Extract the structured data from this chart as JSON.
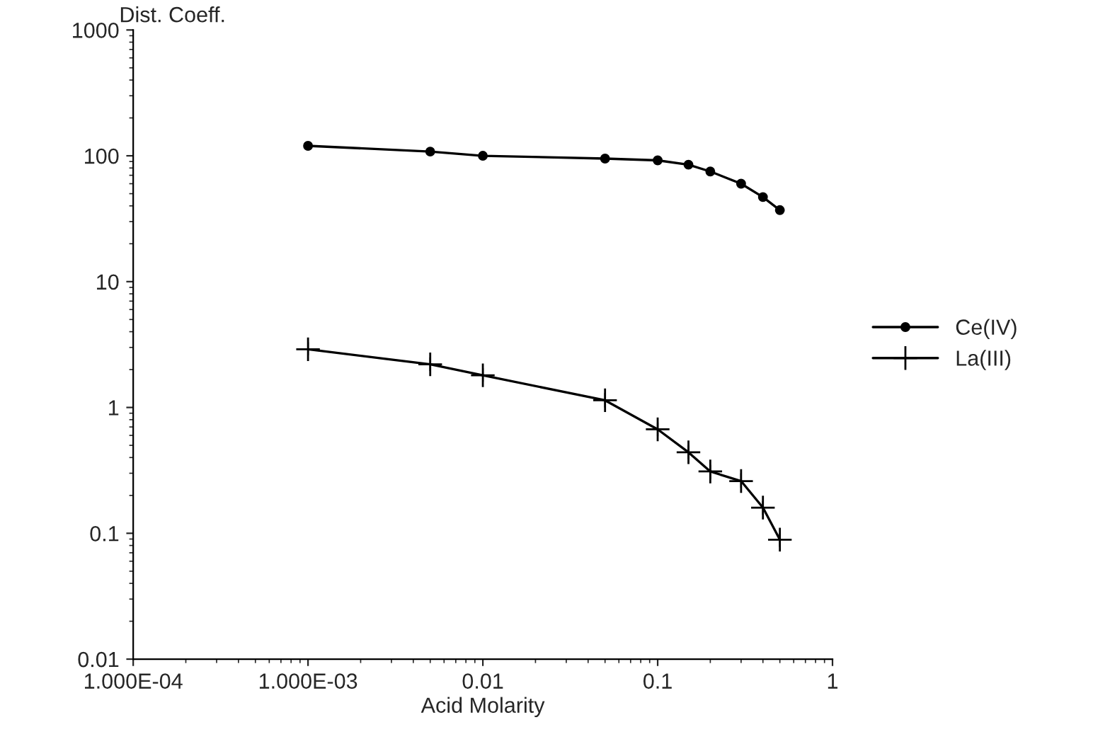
{
  "chart_data": {
    "type": "line",
    "xlabel": "Acid Molarity",
    "ylabel": "Dist. Coeff.",
    "log": "xy",
    "xlim": [
      0.0001,
      1
    ],
    "xticks": [
      {
        "value": 0.0001,
        "label": "1.000E-04"
      },
      {
        "value": 0.001,
        "label": "1.000E-03"
      },
      0.01,
      0.1,
      1
    ],
    "ylim": [
      0.01,
      1000
    ],
    "yticks": [
      0.01,
      0.1,
      1,
      10,
      100,
      1000
    ],
    "grid": false,
    "legend": "right",
    "x": [
      0.001,
      0.005,
      0.01,
      0.05,
      0.1,
      0.15,
      0.2,
      0.3,
      0.4,
      0.5
    ],
    "series": [
      {
        "name": "Ce(IV)",
        "color": "#000000",
        "marker": "circle",
        "values": [
          120,
          108,
          100,
          95,
          92,
          85,
          75,
          60,
          47,
          37
        ]
      },
      {
        "name": "La(III)",
        "color": "#000000",
        "marker": "cross",
        "values": [
          2.9,
          2.2,
          1.8,
          1.14,
          0.67,
          0.44,
          0.31,
          0.26,
          0.16,
          0.089
        ],
        "errors": [
          [
            2.6,
            3.3
          ],
          [
            1.95,
            2.5
          ],
          [
            1.6,
            2.05
          ],
          [
            1.0,
            1.3
          ],
          [
            0.59,
            0.76
          ],
          [
            0.39,
            0.5
          ],
          [
            0.27,
            0.35
          ],
          [
            0.23,
            0.3
          ],
          [
            0.14,
            0.18
          ],
          [
            0.078,
            0.1
          ]
        ]
      }
    ]
  }
}
